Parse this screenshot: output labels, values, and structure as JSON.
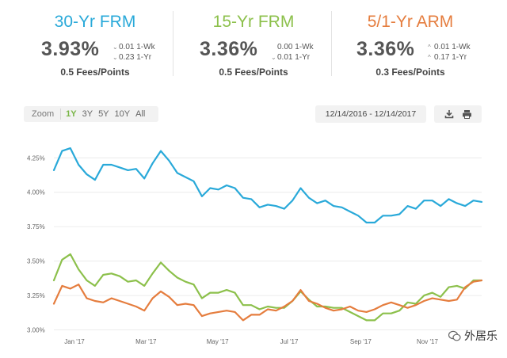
{
  "rates": [
    {
      "title": "30-Yr FRM",
      "color": "#29a9d9",
      "rate": "3.93%",
      "changes": [
        {
          "arrow": "down",
          "text": "0.01 1-Wk"
        },
        {
          "arrow": "down",
          "text": "0.23 1-Yr"
        }
      ],
      "fees": "0.5 Fees/Points"
    },
    {
      "title": "15-Yr FRM",
      "color": "#8cc04b",
      "rate": "3.36%",
      "changes": [
        {
          "arrow": "none",
          "text": "0.00 1-Wk"
        },
        {
          "arrow": "down",
          "text": "0.01 1-Yr"
        }
      ],
      "fees": "0.5 Fees/Points"
    },
    {
      "title": "5/1-Yr ARM",
      "color": "#e57d3e",
      "rate": "3.36%",
      "changes": [
        {
          "arrow": "up",
          "text": "0.01 1-Wk"
        },
        {
          "arrow": "up",
          "text": "0.17 1-Yr"
        }
      ],
      "fees": "0.3 Fees/Points"
    }
  ],
  "zoom": {
    "label": "Zoom",
    "options": [
      "1Y",
      "3Y",
      "5Y",
      "10Y",
      "All"
    ],
    "active": "1Y"
  },
  "date_range": "12/14/2016 - 12/14/2017",
  "tools": [
    "download-icon",
    "print-icon"
  ],
  "watermark": "外居乐",
  "chart_data": {
    "type": "line",
    "ylim": [
      2.98,
      4.43
    ],
    "yticks": [
      "3.00%",
      "3.25%",
      "3.50%",
      "3.75%",
      "4.00%",
      "4.25%"
    ],
    "ytick_values": [
      3.0,
      3.25,
      3.5,
      3.75,
      4.0,
      4.25
    ],
    "xticks": [
      "Jan '17",
      "Mar '17",
      "May '17",
      "Jul '17",
      "Sep '17",
      "Nov '17"
    ],
    "xtick_index": [
      2.5,
      11.2,
      19.9,
      28.6,
      37.3,
      45.4
    ],
    "grid": true,
    "series": [
      {
        "color": "#29a9d9",
        "values": [
          4.16,
          4.3,
          4.32,
          4.2,
          4.13,
          4.09,
          4.2,
          4.2,
          4.18,
          4.16,
          4.17,
          4.1,
          4.21,
          4.3,
          4.23,
          4.14,
          4.11,
          4.08,
          3.97,
          4.03,
          4.02,
          4.05,
          4.03,
          3.96,
          3.95,
          3.89,
          3.91,
          3.9,
          3.88,
          3.94,
          4.03,
          3.96,
          3.92,
          3.94,
          3.9,
          3.89,
          3.86,
          3.83,
          3.78,
          3.78,
          3.83,
          3.83,
          3.84,
          3.9,
          3.88,
          3.94,
          3.94,
          3.9,
          3.95,
          3.92,
          3.9,
          3.94,
          3.93
        ]
      },
      {
        "color": "#8cc04b",
        "values": [
          3.36,
          3.51,
          3.55,
          3.44,
          3.36,
          3.32,
          3.4,
          3.41,
          3.39,
          3.35,
          3.36,
          3.32,
          3.41,
          3.49,
          3.43,
          3.38,
          3.35,
          3.33,
          3.23,
          3.27,
          3.27,
          3.29,
          3.27,
          3.18,
          3.18,
          3.15,
          3.17,
          3.16,
          3.16,
          3.21,
          3.28,
          3.22,
          3.17,
          3.17,
          3.16,
          3.16,
          3.13,
          3.1,
          3.07,
          3.07,
          3.12,
          3.12,
          3.14,
          3.2,
          3.19,
          3.25,
          3.27,
          3.24,
          3.31,
          3.32,
          3.3,
          3.36,
          3.36
        ]
      },
      {
        "color": "#e57d3e",
        "values": [
          3.19,
          3.32,
          3.3,
          3.33,
          3.23,
          3.21,
          3.2,
          3.23,
          3.21,
          3.19,
          3.17,
          3.14,
          3.23,
          3.28,
          3.24,
          3.18,
          3.19,
          3.18,
          3.1,
          3.12,
          3.13,
          3.14,
          3.13,
          3.07,
          3.11,
          3.11,
          3.15,
          3.14,
          3.17,
          3.21,
          3.29,
          3.21,
          3.19,
          3.16,
          3.14,
          3.15,
          3.17,
          3.14,
          3.13,
          3.15,
          3.18,
          3.2,
          3.18,
          3.16,
          3.18,
          3.21,
          3.23,
          3.22,
          3.21,
          3.22,
          3.31,
          3.35,
          3.36
        ]
      }
    ]
  }
}
